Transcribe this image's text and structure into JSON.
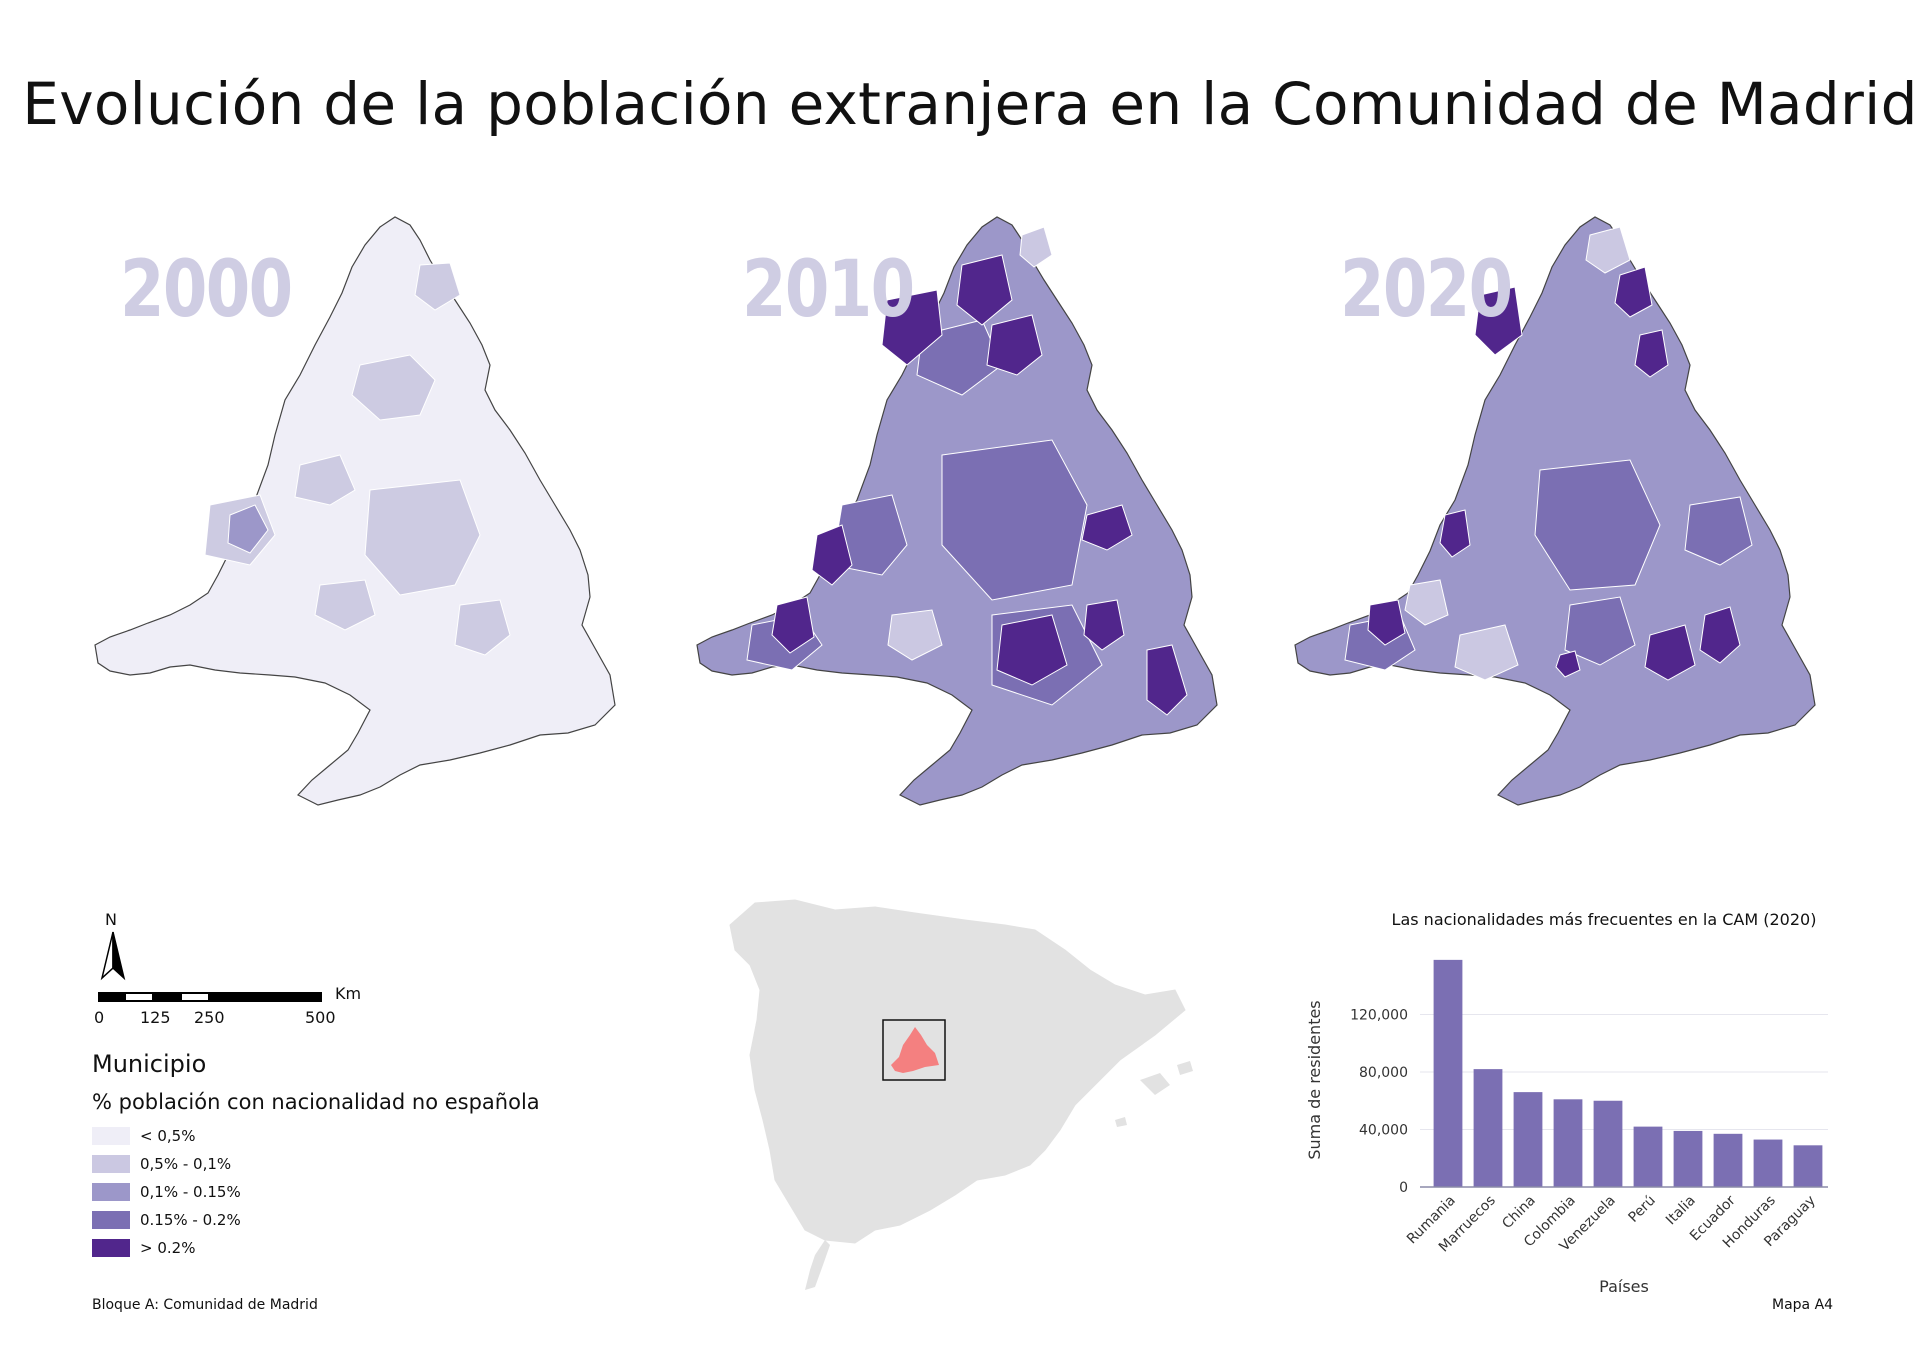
{
  "title": "Evolución de la población extranjera en la Comunidad de Madrid",
  "maps": [
    {
      "year": "2000",
      "fill": "#efeef7",
      "accent": "#cdcbe2"
    },
    {
      "year": "2010",
      "fill": "#7b6fb3",
      "accent": "#51268c"
    },
    {
      "year": "2020",
      "fill": "#9a93c7",
      "accent": "#51268c"
    }
  ],
  "north_arrow": {
    "label": "N"
  },
  "scale_bar": {
    "unit": "Km",
    "ticks": [
      "0",
      "125",
      "250",
      "500"
    ]
  },
  "legend": {
    "title": "Municipio",
    "subtitle": "% población con nacionalidad no española",
    "items": [
      {
        "label": "< 0,5%",
        "color": "#efeef7"
      },
      {
        "label": "0,5% - 0,1%",
        "color": "#cbc8e2"
      },
      {
        "label": "0,1% - 0.15%",
        "color": "#9c97c9"
      },
      {
        "label": "0.15% - 0.2%",
        "color": "#7b6fb3"
      },
      {
        "label": "> 0.2%",
        "color": "#51268c"
      }
    ]
  },
  "locator": {
    "country_fill": "#e2e2e2",
    "region_fill": "#f48080"
  },
  "chart_data": {
    "type": "bar",
    "title": "Las nacionalidades más frecuentes en la CAM (2020)",
    "xlabel": "Países",
    "ylabel": "Suma de residentes",
    "categories": [
      "Rumania",
      "Marruecos",
      "China",
      "Colombia",
      "Venezuela",
      "Perú",
      "Italia",
      "Ecuador",
      "Honduras",
      "Paraguay"
    ],
    "values": [
      158000,
      82000,
      66000,
      61000,
      60000,
      42000,
      39000,
      37000,
      33000,
      29000
    ],
    "yticks": [
      0,
      40000,
      80000,
      120000
    ],
    "ytick_labels": [
      "0",
      "40,000",
      "80,000",
      "120,000"
    ],
    "ylim": [
      0,
      160000
    ],
    "color": "#7b6fb3",
    "grid": true
  },
  "footer": {
    "left": "Bloque A: Comunidad de Madrid",
    "right": "Mapa A4"
  }
}
